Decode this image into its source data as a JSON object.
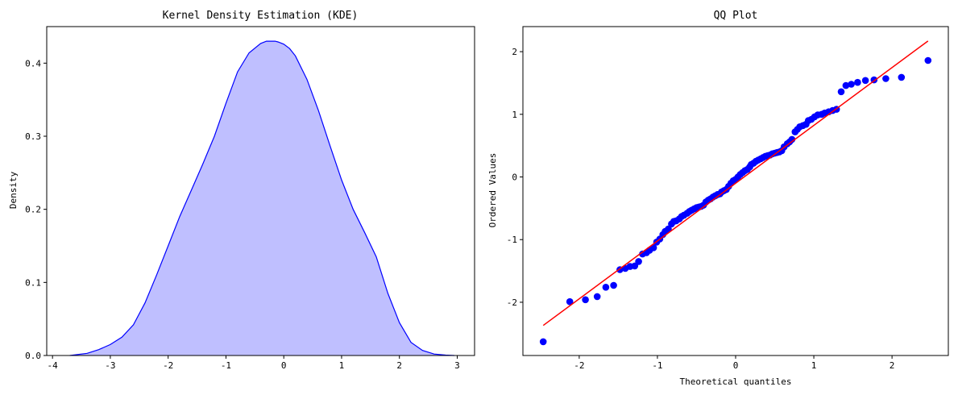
{
  "chart_data": [
    {
      "type": "area",
      "title": "Kernel Density Estimation (KDE)",
      "xlabel": "",
      "ylabel": "Density",
      "xlim": [
        -4.1,
        3.3
      ],
      "ylim": [
        0,
        0.45
      ],
      "xticks": [
        -4,
        -3,
        -2,
        -1,
        0,
        1,
        2,
        3
      ],
      "yticks": [
        0.0,
        0.1,
        0.2,
        0.3,
        0.4
      ],
      "ytick_labels": [
        "0.0",
        "0.1",
        "0.2",
        "0.3",
        "0.4"
      ],
      "colors": {
        "line": "#0000ff",
        "fill": "#bfbfff"
      },
      "grid": false,
      "x": [
        -3.7,
        -3.4,
        -3.2,
        -3.0,
        -2.8,
        -2.6,
        -2.4,
        -2.2,
        -2.0,
        -1.8,
        -1.6,
        -1.4,
        -1.2,
        -1.0,
        -0.8,
        -0.6,
        -0.4,
        -0.3,
        -0.2,
        -0.15,
        -0.1,
        0.0,
        0.1,
        0.2,
        0.4,
        0.6,
        0.8,
        1.0,
        1.2,
        1.4,
        1.6,
        1.8,
        2.0,
        2.2,
        2.4,
        2.6,
        2.8,
        2.95
      ],
      "y": [
        0.0,
        0.003,
        0.008,
        0.015,
        0.025,
        0.042,
        0.072,
        0.11,
        0.15,
        0.19,
        0.226,
        0.262,
        0.3,
        0.345,
        0.388,
        0.414,
        0.427,
        0.43,
        0.43,
        0.43,
        0.429,
        0.426,
        0.42,
        0.41,
        0.378,
        0.335,
        0.287,
        0.24,
        0.2,
        0.168,
        0.135,
        0.085,
        0.045,
        0.018,
        0.007,
        0.002,
        0.0005,
        0.0
      ]
    },
    {
      "type": "scatter",
      "title": "QQ Plot",
      "xlabel": "Theoretical quantiles",
      "ylabel": "Ordered Values",
      "xlim": [
        -2.72,
        2.72
      ],
      "ylim": [
        -2.85,
        2.4
      ],
      "xticks": [
        -2,
        -1,
        0,
        1,
        2
      ],
      "yticks": [
        -2,
        -1,
        0,
        1,
        2
      ],
      "colors": {
        "points": "#0000ff",
        "line": "#ff0000"
      },
      "grid": false,
      "fit_line": {
        "x": [
          -2.46,
          2.46
        ],
        "y": [
          -2.37,
          2.17
        ]
      },
      "x": [
        -2.46,
        -2.12,
        -1.92,
        -1.77,
        -1.66,
        -1.56,
        -1.48,
        -1.41,
        -1.35,
        -1.29,
        -1.24,
        -1.19,
        -1.14,
        -1.1,
        -1.05,
        -1.01,
        -0.97,
        -0.93,
        -0.9,
        -0.86,
        -0.82,
        -0.79,
        -0.76,
        -0.72,
        -0.69,
        -0.66,
        -0.62,
        -0.59,
        -0.56,
        -0.53,
        -0.5,
        -0.47,
        -0.44,
        -0.41,
        -0.38,
        -0.35,
        -0.32,
        -0.29,
        -0.26,
        -0.23,
        -0.2,
        -0.18,
        -0.15,
        -0.12,
        -0.09,
        -0.06,
        -0.03,
        0.0,
        0.03,
        0.06,
        0.09,
        0.12,
        0.15,
        0.18,
        0.2,
        0.23,
        0.26,
        0.29,
        0.32,
        0.35,
        0.38,
        0.41,
        0.44,
        0.47,
        0.5,
        0.53,
        0.56,
        0.59,
        0.62,
        0.66,
        0.69,
        0.72,
        0.76,
        0.79,
        0.82,
        0.86,
        0.9,
        0.93,
        0.97,
        1.01,
        1.05,
        1.1,
        1.14,
        1.19,
        1.24,
        1.29,
        1.35,
        1.41,
        1.48,
        1.56,
        1.66,
        1.77,
        1.92,
        2.12,
        2.46
      ],
      "y": [
        -2.63,
        -1.99,
        -1.96,
        -1.91,
        -1.76,
        -1.73,
        -1.48,
        -1.46,
        -1.43,
        -1.42,
        -1.35,
        -1.23,
        -1.21,
        -1.17,
        -1.13,
        -1.04,
        -0.99,
        -0.92,
        -0.87,
        -0.83,
        -0.75,
        -0.71,
        -0.7,
        -0.67,
        -0.63,
        -0.61,
        -0.58,
        -0.55,
        -0.53,
        -0.51,
        -0.49,
        -0.48,
        -0.47,
        -0.45,
        -0.4,
        -0.37,
        -0.35,
        -0.32,
        -0.3,
        -0.28,
        -0.27,
        -0.24,
        -0.22,
        -0.2,
        -0.15,
        -0.1,
        -0.06,
        -0.04,
        0.0,
        0.04,
        0.07,
        0.1,
        0.12,
        0.16,
        0.2,
        0.22,
        0.25,
        0.27,
        0.29,
        0.31,
        0.33,
        0.34,
        0.35,
        0.37,
        0.38,
        0.39,
        0.4,
        0.42,
        0.48,
        0.53,
        0.56,
        0.6,
        0.72,
        0.76,
        0.8,
        0.82,
        0.84,
        0.9,
        0.92,
        0.96,
        0.99,
        1.0,
        1.02,
        1.04,
        1.06,
        1.08,
        1.36,
        1.46,
        1.48,
        1.51,
        1.54,
        1.55,
        1.57,
        1.59,
        1.86
      ]
    }
  ]
}
